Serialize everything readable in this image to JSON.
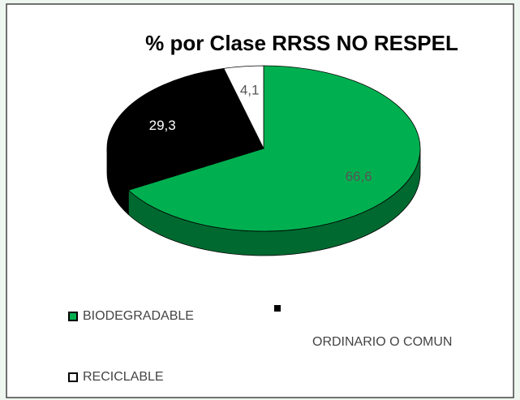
{
  "chart_data": {
    "type": "pie",
    "title": "% por Clase RRSS NO RESPEL",
    "categories": [
      "BIODEGRADABLE",
      "ORDINARIO O COMUN",
      "RECICLABLE"
    ],
    "values": [
      66.6,
      29.3,
      4.1
    ],
    "value_labels": [
      "66,6",
      "29,3",
      "4,1"
    ],
    "colors": [
      "#00b050",
      "#000000",
      "#ffffff"
    ],
    "legend": "bottom"
  }
}
